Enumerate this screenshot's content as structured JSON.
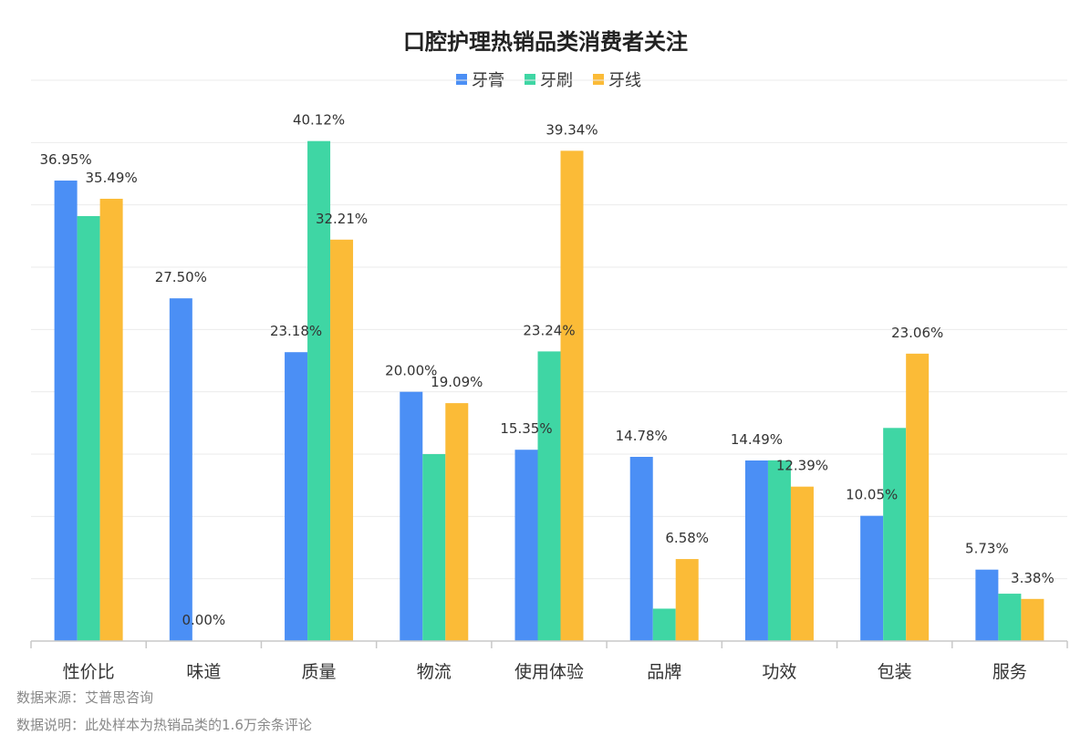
{
  "chart_data": {
    "type": "bar",
    "title": "口腔护理热销品类消费者关注",
    "categories": [
      "性价比",
      "味道",
      "质量",
      "物流",
      "使用体验",
      "品牌",
      "功效",
      "包装",
      "服务"
    ],
    "series": [
      {
        "name": "牙膏",
        "color": "#4b8ff5",
        "values": [
          36.95,
          27.5,
          23.18,
          20.0,
          15.35,
          14.78,
          14.49,
          10.05,
          5.73
        ],
        "labels": [
          "36.95%",
          "27.50%",
          "23.18%",
          "20.00%",
          "15.35%",
          "14.78%",
          "14.49%",
          "10.05%",
          "5.73%"
        ]
      },
      {
        "name": "牙刷",
        "color": "#3fd6a4",
        "values": [
          34.1,
          0,
          40.12,
          15.0,
          23.24,
          2.6,
          14.5,
          17.1,
          3.8
        ],
        "labels": [
          "",
          "0.00%",
          "40.12%",
          "",
          "23.24%",
          "",
          "",
          "",
          ""
        ]
      },
      {
        "name": "牙线",
        "color": "#fbbb37",
        "values": [
          35.49,
          0,
          32.21,
          19.09,
          39.34,
          6.58,
          12.39,
          23.06,
          3.38
        ],
        "labels": [
          "35.49%",
          "",
          "32.21%",
          "19.09%",
          "39.34%",
          "6.58%",
          "12.39%",
          "23.06%",
          "3.38%"
        ]
      }
    ],
    "ylim": [
      0,
      45
    ],
    "grid": true,
    "legend": "top-center"
  },
  "footnotes": {
    "source": "数据来源：艾普思咨询",
    "note": "数据说明：此处样本为热销品类的1.6万余条评论"
  }
}
